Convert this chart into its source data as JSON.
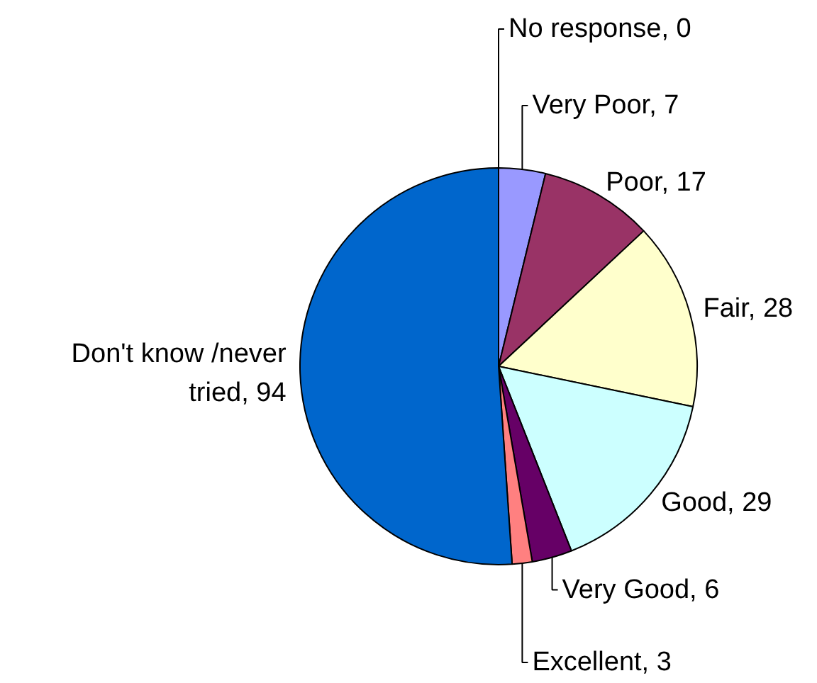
{
  "chart_data": {
    "type": "pie",
    "categories": [
      "No response, 0",
      "Very Poor, 7",
      "Poor, 17",
      "Fair, 28",
      "Good, 29",
      "Very Good, 6",
      "Excellent, 3",
      "Don't know /never tried, 94"
    ],
    "values": [
      0,
      7,
      17,
      28,
      29,
      6,
      3,
      94
    ],
    "colors": [
      "#ffffff",
      "#9999ff",
      "#993366",
      "#ffffcc",
      "#ccffff",
      "#660066",
      "#ff8080",
      "#0066cc"
    ]
  }
}
